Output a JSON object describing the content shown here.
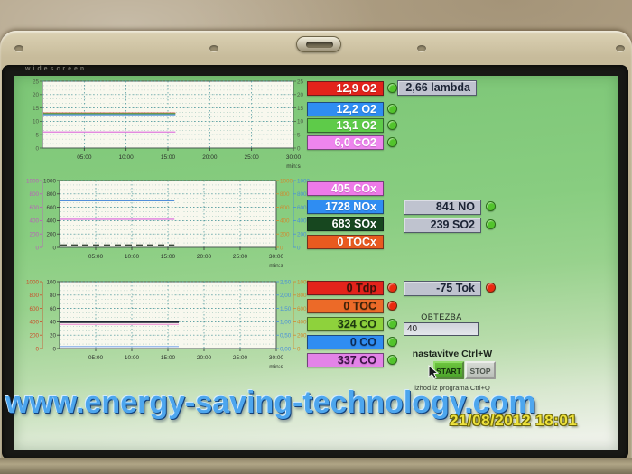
{
  "bezel": {
    "brand": "widescreen"
  },
  "watermark": {
    "text": "www.energy-saving-technology.com"
  },
  "timestamp": {
    "text": "21/08/2012 18:01"
  },
  "groups": {
    "g1": {
      "rows": [
        {
          "label": "12,9 O2",
          "bg": "#e3231b",
          "fg": "#ffffff",
          "led": "#52c42c"
        },
        {
          "label": "12,2 O2",
          "bg": "#2f8df2",
          "fg": "#ffffff",
          "led": "#52c42c"
        },
        {
          "label": "13,1 O2",
          "bg": "#5ecb49",
          "fg": "#ffffff",
          "led": "#52c42c"
        },
        {
          "label": "6,0 CO2",
          "bg": "#ee85ee",
          "fg": "#ffffff",
          "led": "#52c42c"
        }
      ],
      "lambda": {
        "label": "2,66 lambda",
        "bg": "#b9bdc9",
        "fg": "#1b2334"
      }
    },
    "g2": {
      "rows": [
        {
          "label": "405 COx",
          "bg": "#ee7ae8",
          "fg": "#ffffff"
        },
        {
          "label": "1728 NOx",
          "bg": "#2f8df2",
          "fg": "#ffffff"
        },
        {
          "label": "683 SOx",
          "bg": "#17471f",
          "fg": "#ffffff"
        },
        {
          "label": "0 TOCx",
          "bg": "#e95a1f",
          "fg": "#ffffff"
        }
      ],
      "no": {
        "label": "841 NO",
        "led": "#52c42c"
      },
      "so2": {
        "label": "239 SO2",
        "led": "#52c42c"
      }
    },
    "g3": {
      "rows": [
        {
          "label": "0 Tdp",
          "bg": "#e3231b",
          "fg": "#3c1208",
          "led": "#ea2a10"
        },
        {
          "label": "0 TOC",
          "bg": "#ec6a28",
          "fg": "#3c2208",
          "led": "#ea2a10"
        },
        {
          "label": "324 CO",
          "bg": "#8ed23c",
          "fg": "#1d3a10",
          "led": "#52c42c"
        },
        {
          "label": "0 CO",
          "bg": "#2f8df2",
          "fg": "#0c2a55",
          "led": "#52c42c"
        },
        {
          "label": "337 CO",
          "bg": "#e383e8",
          "fg": "#3a1245",
          "led": "#52c42c"
        }
      ],
      "tok": {
        "label": "-75 Tok",
        "led": "#ea2a10"
      }
    }
  },
  "controls": {
    "obtezba_label": "OBTEZBA",
    "obtezba_value": "40",
    "nastavitve": "nastavitve Ctrl+W",
    "start": "START",
    "stop": "STOP",
    "izhod": "izhod iz programa Ctrl+Q"
  },
  "chart_data": [
    {
      "type": "line",
      "ylim": [
        0,
        25
      ],
      "x_ticks": [
        "05:00",
        "10:00",
        "15:00",
        "20:00",
        "25:00",
        "30:00"
      ],
      "xlabel": "min:s",
      "axes": {
        "left": [
          {
            "color": "#4e6048",
            "ticks": [
              "0",
              "5",
              "10",
              "15",
              "20",
              "25"
            ]
          }
        ],
        "right": [
          {
            "color": "#4e6048",
            "ticks": [
              "0",
              "5",
              "10",
              "15",
              "20",
              "25"
            ]
          }
        ]
      },
      "series": [
        {
          "name": "O2 red",
          "color": "#d2372c",
          "width": 1.2,
          "value": 13.1,
          "x_end": 0.53
        },
        {
          "name": "O2 blue",
          "color": "#3b7fd6",
          "width": 1.2,
          "value": 12.5,
          "x_end": 0.53
        },
        {
          "name": "O2 green",
          "color": "#57b04a",
          "width": 1.2,
          "value": 12.9,
          "x_end": 0.53
        },
        {
          "name": "CO2 violet",
          "color": "#e07ade",
          "width": 1.2,
          "value": 6.0,
          "x_end": 0.53
        }
      ]
    },
    {
      "type": "line",
      "ylim": [
        0,
        1000
      ],
      "x_ticks": [
        "05:00",
        "10:00",
        "15:00",
        "20:00",
        "25:00",
        "30:00"
      ],
      "xlabel": "min:s",
      "axes": {
        "left": [
          {
            "color": "#bc5cbc",
            "ticks": [
              "0",
              "200",
              "400",
              "600",
              "800",
              "1000"
            ]
          },
          {
            "color": "#3a3a3a",
            "ticks": [
              "0",
              "200",
              "400",
              "600",
              "800",
              "1000"
            ]
          }
        ],
        "right": [
          {
            "color": "#d08a30",
            "ticks": [
              "0",
              "200",
              "400",
              "600",
              "800",
              "1000"
            ]
          },
          {
            "color": "#4a90d8",
            "ticks": [
              "0",
              "200",
              "400",
              "600",
              "800",
              "1000"
            ]
          }
        ]
      },
      "series": [
        {
          "name": "NOx",
          "color": "#3b7fd6",
          "width": 1.3,
          "value": 700,
          "x_end": 0.53
        },
        {
          "name": "COx",
          "color": "#e07ade",
          "width": 1.3,
          "value": 420,
          "x_end": 0.53
        },
        {
          "name": "SOx",
          "color": "#3c4a3c",
          "width": 2.2,
          "dash": "7,5",
          "value": 30,
          "x_end": 0.53
        }
      ]
    },
    {
      "type": "line",
      "ylim": [
        0,
        100
      ],
      "x_ticks": [
        "05:00",
        "10:00",
        "15:00",
        "20:00",
        "25:00",
        "30:00"
      ],
      "xlabel": "min:s",
      "axes": {
        "left": [
          {
            "color": "#cc4b28",
            "ticks": [
              "0",
              "200",
              "400",
              "600",
              "800",
              "1000"
            ]
          },
          {
            "color": "#3a3a3a",
            "ticks": [
              "0",
              "20",
              "40",
              "60",
              "80",
              "100"
            ]
          }
        ],
        "right": [
          {
            "color": "#4a90d8",
            "ticks": [
              "0,00",
              "0,50",
              "1,00",
              "1,50",
              "2,00",
              "2,50"
            ]
          },
          {
            "color": "#d08a30",
            "ticks": [
              "0",
              "200",
              "400",
              "600",
              "800",
              "1000"
            ]
          }
        ]
      },
      "series": [
        {
          "name": "Tok black",
          "color": "#1c2430",
          "width": 2.6,
          "value": 40,
          "x_end": 0.55
        },
        {
          "name": "pink",
          "color": "#efa0d8",
          "width": 1.4,
          "value": 36,
          "x_end": 0.55
        },
        {
          "name": "blue",
          "color": "#8fb4ec",
          "width": 1.2,
          "value": 3,
          "x_end": 0.55
        }
      ]
    }
  ]
}
